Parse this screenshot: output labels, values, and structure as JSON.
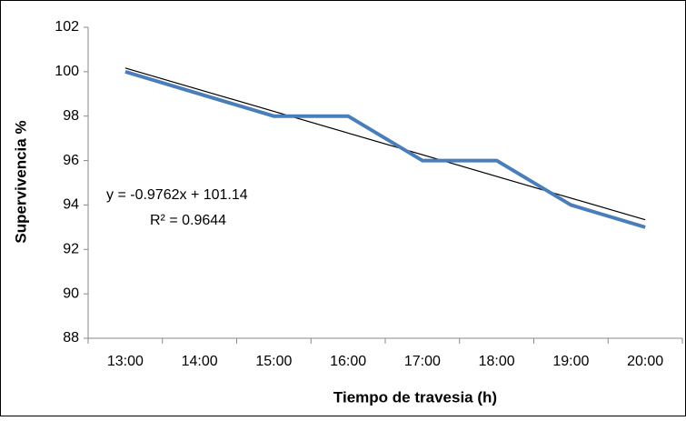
{
  "chart_data": {
    "type": "line",
    "y_label": "Supervivencia %",
    "x_label": "Tiempo de travesia (h)",
    "categories": [
      "13:00",
      "14:00",
      "15:00",
      "16:00",
      "17:00",
      "18:00",
      "19:00",
      "20:00"
    ],
    "series": [
      {
        "name": "Supervivencia",
        "color": "#4a7ebb",
        "values": [
          100,
          99,
          98,
          98,
          96,
          96,
          94,
          93
        ]
      }
    ],
    "trendline": {
      "color": "#000000",
      "equation": "y = -0.9762x + 101.14",
      "r2": "R² = 0.9644"
    },
    "ylim": [
      88,
      102
    ],
    "yticks": [
      88,
      90,
      92,
      94,
      96,
      98,
      100,
      102
    ],
    "grid": false
  }
}
